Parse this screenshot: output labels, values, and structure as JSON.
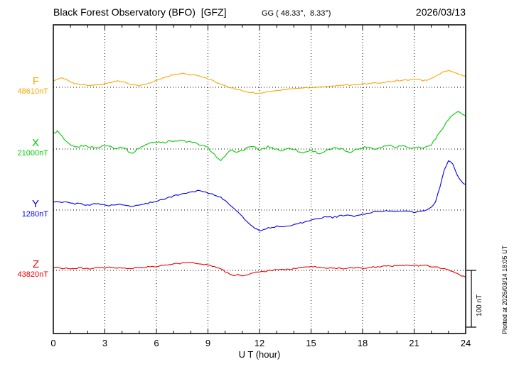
{
  "header": {
    "title": "Black Forest Observatory (BFO)  [GFZ]",
    "subtitle": "GG ( 48.33°,  8.33°)",
    "date": "2026/03/13"
  },
  "footer_note": "Plotted at 2026/03/14 18:05 UT",
  "scale_bar": {
    "label": "100 nT",
    "nT": 100
  },
  "chart_data": {
    "type": "line",
    "title": "Black Forest Observatory (BFO) [GFZ] magnetogram",
    "xlabel": "U T (hour)",
    "x_start": 0,
    "x_end": 24,
    "x_step": 0.25,
    "x_ticks": [
      0,
      3,
      6,
      9,
      12,
      15,
      18,
      21,
      24
    ],
    "grid": "dotted vertical at 3h intervals, dotted horizontal at each channel baseline",
    "legend_position": "left margin channel labels",
    "series": [
      {
        "name": "F",
        "label": "F",
        "baseline_label": "48610nT",
        "baseline_nT": 48610,
        "color": "#FFA500",
        "noise_nT": 1.0,
        "offsets_nT": [
          12,
          14,
          16,
          14,
          10,
          7,
          5,
          4,
          3,
          3,
          4,
          5,
          6,
          8,
          10,
          11,
          10,
          8,
          6,
          4,
          3,
          4,
          6,
          9,
          12,
          15,
          18,
          20,
          22,
          23,
          24,
          23,
          22,
          21,
          20,
          18,
          15,
          12,
          8,
          5,
          2,
          0,
          -2,
          -4,
          -6,
          -8,
          -9,
          -10,
          -10,
          -9,
          -8,
          -7,
          -6,
          -5,
          -4,
          -3,
          -2,
          -2,
          -1,
          -1,
          0,
          0,
          1,
          1,
          2,
          2,
          3,
          3,
          4,
          4,
          5,
          5,
          6,
          6,
          7,
          7,
          8,
          9,
          10,
          11,
          12,
          12,
          13,
          13,
          14,
          13,
          12,
          13,
          15,
          19,
          24,
          28,
          29,
          27,
          24,
          21,
          20
        ]
      },
      {
        "name": "X",
        "label": "X",
        "baseline_label": "21000nT",
        "baseline_nT": 21000,
        "color": "#00CC00",
        "noise_nT": 1.8,
        "offsets_nT": [
          28,
          31,
          22,
          12,
          6,
          3,
          4,
          6,
          5,
          3,
          2,
          4,
          6,
          5,
          3,
          2,
          4,
          0,
          -8,
          -4,
          2,
          6,
          9,
          11,
          12,
          13,
          12,
          14,
          15,
          14,
          15,
          13,
          12,
          10,
          8,
          5,
          2,
          -5,
          -14,
          -22,
          -12,
          -5,
          -2,
          -6,
          -3,
          2,
          5,
          2,
          -2,
          1,
          4,
          2,
          0,
          -3,
          -1,
          2,
          0,
          -4,
          -7,
          -4,
          -2,
          -5,
          -8,
          -5,
          -2,
          0,
          2,
          0,
          -3,
          -5,
          -2,
          0,
          2,
          4,
          2,
          0,
          3,
          5,
          7,
          5,
          4,
          6,
          5,
          3,
          2,
          3,
          2,
          4,
          8,
          18,
          30,
          42,
          52,
          60,
          66,
          62,
          58
        ]
      },
      {
        "name": "Y",
        "label": "Y",
        "baseline_label": "1280nT",
        "baseline_nT": 1280,
        "color": "#0000EE",
        "noise_nT": 1.2,
        "offsets_nT": [
          15,
          14,
          13,
          14,
          12,
          11,
          12,
          10,
          9,
          10,
          11,
          10,
          9,
          8,
          9,
          10,
          9,
          8,
          7,
          8,
          9,
          10,
          12,
          14,
          16,
          18,
          20,
          22,
          25,
          27,
          28,
          30,
          32,
          33,
          35,
          33,
          30,
          28,
          26,
          22,
          16,
          10,
          4,
          -4,
          -12,
          -20,
          -26,
          -32,
          -36,
          -34,
          -32,
          -30,
          -29,
          -30,
          -28,
          -27,
          -26,
          -24,
          -22,
          -20,
          -18,
          -16,
          -14,
          -13,
          -12,
          -13,
          -12,
          -10,
          -9,
          -10,
          -11,
          -9,
          -8,
          -6,
          -4,
          -3,
          -2,
          -1,
          -2,
          -3,
          -2,
          -1,
          -2,
          -3,
          -4,
          -3,
          -2,
          0,
          4,
          15,
          40,
          70,
          88,
          80,
          62,
          50,
          45
        ]
      },
      {
        "name": "Z",
        "label": "Z",
        "baseline_label": "43820nT",
        "baseline_nT": 43820,
        "color": "#EE0000",
        "noise_nT": 1.2,
        "offsets_nT": [
          5,
          5,
          4,
          4,
          3,
          3,
          4,
          4,
          3,
          3,
          4,
          4,
          4,
          5,
          5,
          4,
          4,
          3,
          4,
          4,
          5,
          5,
          6,
          6,
          7,
          8,
          9,
          10,
          11,
          12,
          13,
          13,
          14,
          13,
          12,
          11,
          10,
          8,
          5,
          2,
          -2,
          -6,
          -9,
          -7,
          -10,
          -8,
          -6,
          -4,
          -3,
          -2,
          -1,
          0,
          1,
          1,
          2,
          2,
          3,
          4,
          5,
          6,
          7,
          6,
          5,
          4,
          4,
          5,
          4,
          3,
          4,
          4,
          5,
          4,
          4,
          5,
          5,
          6,
          6,
          7,
          7,
          8,
          8,
          8,
          9,
          9,
          9,
          8,
          8,
          8,
          7,
          6,
          5,
          3,
          0,
          -3,
          -6,
          -9,
          -11
        ]
      }
    ]
  }
}
